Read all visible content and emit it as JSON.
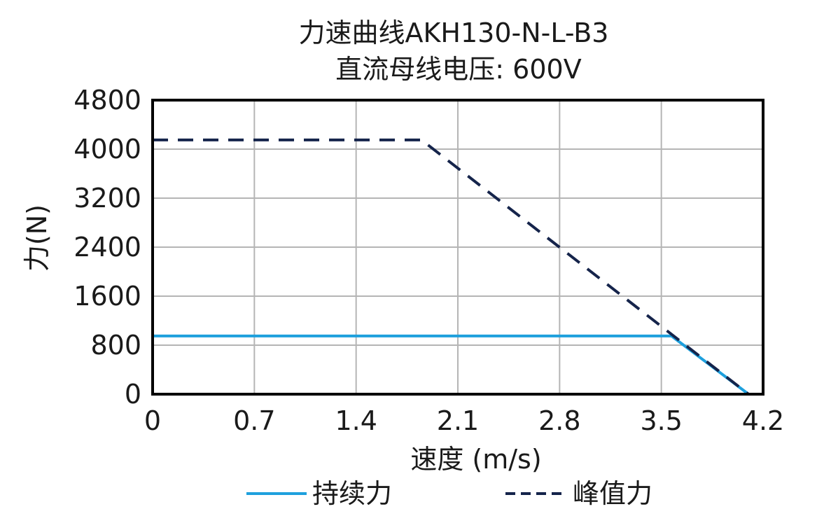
{
  "chart_data": {
    "type": "line",
    "title": "力速曲线AKH130-N-L-B3",
    "subtitle": "直流母线电压: 600V",
    "xlabel": "速度 (m/s)",
    "ylabel": "力(N)",
    "xlim": [
      0,
      4.2
    ],
    "ylim": [
      0,
      4800
    ],
    "xticks": [
      0,
      0.7,
      1.4,
      2.1,
      2.8,
      3.5,
      4.2
    ],
    "yticks": [
      0,
      800,
      1600,
      2400,
      3200,
      4000,
      4800
    ],
    "xtick_labels": [
      "0",
      "0.7",
      "1.4",
      "2.1",
      "2.8",
      "3.5",
      "4.2"
    ],
    "ytick_labels": [
      "0",
      "800",
      "1600",
      "2400",
      "3200",
      "4000",
      "4800"
    ],
    "grid": true,
    "legend_position": "bottom",
    "series": [
      {
        "name": "持续力",
        "color": "#1ea0dd",
        "style": "solid",
        "x": [
          0,
          3.57,
          4.1
        ],
        "y": [
          950,
          950,
          0
        ]
      },
      {
        "name": "峰值力",
        "color": "#15244b",
        "style": "dashed",
        "x": [
          0,
          1.85,
          4.1
        ],
        "y": [
          4150,
          4150,
          0
        ]
      }
    ]
  }
}
